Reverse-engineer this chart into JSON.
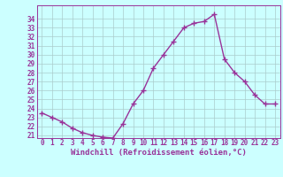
{
  "x": [
    0,
    1,
    2,
    3,
    4,
    5,
    6,
    7,
    8,
    9,
    10,
    11,
    12,
    13,
    14,
    15,
    16,
    17,
    18,
    19,
    20,
    21,
    22,
    23
  ],
  "y": [
    23.5,
    23.0,
    22.5,
    21.8,
    21.3,
    21.0,
    20.8,
    20.7,
    22.3,
    24.5,
    26.0,
    28.5,
    30.0,
    31.5,
    33.0,
    33.5,
    33.7,
    34.5,
    29.5,
    28.0,
    27.0,
    25.5,
    24.5,
    24.5
  ],
  "line_color": "#993399",
  "marker": "+",
  "marker_color": "#993399",
  "bg_color": "#ccffff",
  "grid_color": "#aacccc",
  "axis_label_color": "#993399",
  "tick_label_color": "#993399",
  "xlabel": "Windchill (Refroidissement éolien,°C)",
  "ylim": [
    21,
    35
  ],
  "xlim": [
    -0.5,
    23.5
  ],
  "yticks": [
    21,
    22,
    23,
    24,
    25,
    26,
    27,
    28,
    29,
    30,
    31,
    32,
    33,
    34
  ],
  "xticks": [
    0,
    1,
    2,
    3,
    4,
    5,
    6,
    7,
    8,
    9,
    10,
    11,
    12,
    13,
    14,
    15,
    16,
    17,
    18,
    19,
    20,
    21,
    22,
    23
  ],
  "font_size": 5.5,
  "xlabel_font_size": 6.5,
  "line_width": 1.0,
  "marker_size": 4
}
